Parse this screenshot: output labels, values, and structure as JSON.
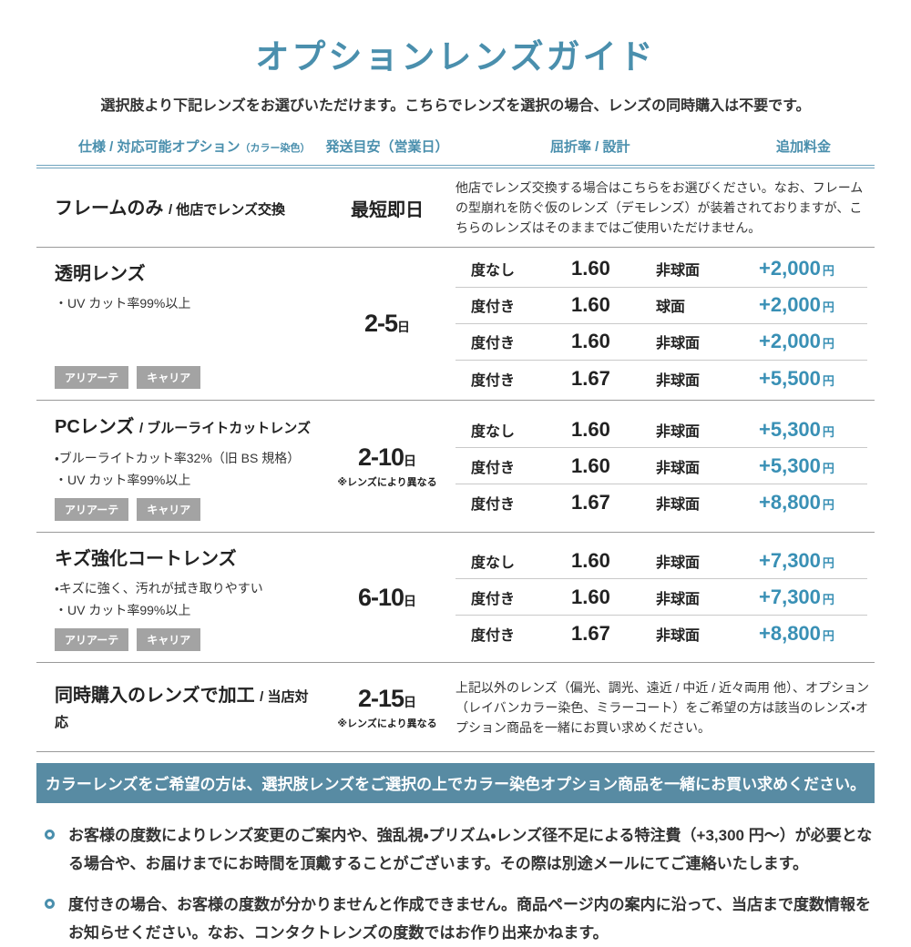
{
  "colors": {
    "accent": "#4a8fad",
    "price": "#3990b5",
    "banner_bg": "#588ba3",
    "badge_bg": "#a3a3a3"
  },
  "labels": {
    "yen": "円",
    "day": "日"
  },
  "page": {
    "title": "オプションレンズガイド",
    "subtitle": "選択肢より下記レンズをお選びいただけます。こちらでレンズを選択の場合、レンズの同時購入は不要です。"
  },
  "table": {
    "headers": {
      "spec": "仕様 / 対応可能オプション",
      "spec_note": "（カラー染色）",
      "shipping": "発送目安（営業日）",
      "index_design": "屈折率 / 設計",
      "price": "追加料金"
    },
    "rows": [
      {
        "name": "フレームのみ",
        "suffix": "/ 他店でレンズ交換",
        "ship_plain": "最短即日",
        "description": "他店でレンズ交換する場合はこちらをお選びください。なお、フレームの型崩れを防ぐ仮のレンズ（デモレンズ）が装着されておりますが、こちらのレンズはそのままではご使用いただけません。"
      },
      {
        "name": "透明レンズ",
        "features": [
          "・UV カット率99%以上"
        ],
        "tags": [
          "アリアーテ",
          "キャリア"
        ],
        "ship_value": "2-5",
        "options": [
          {
            "power": "度なし",
            "index": "1.60",
            "design": "非球面",
            "price": "+2,000"
          },
          {
            "power": "度付き",
            "index": "1.60",
            "design": "球面",
            "price": "+2,000"
          },
          {
            "power": "度付き",
            "index": "1.60",
            "design": "非球面",
            "price": "+2,000"
          },
          {
            "power": "度付き",
            "index": "1.67",
            "design": "非球面",
            "price": "+5,500"
          }
        ]
      },
      {
        "name": "PCレンズ",
        "suffix": "/ ブルーライトカットレンズ",
        "features": [
          "・ブルーライトカット率32%（旧 BS 規格）",
          "・UV カット率99%以上"
        ],
        "tags": [
          "アリアーテ",
          "キャリア"
        ],
        "ship_value": "2-10",
        "ship_note": "※レンズにより異なる",
        "options": [
          {
            "power": "度なし",
            "index": "1.60",
            "design": "非球面",
            "price": "+5,300"
          },
          {
            "power": "度付き",
            "index": "1.60",
            "design": "非球面",
            "price": "+5,300"
          },
          {
            "power": "度付き",
            "index": "1.67",
            "design": "非球面",
            "price": "+8,800"
          }
        ]
      },
      {
        "name": "キズ強化コートレンズ",
        "features": [
          "・キズに強く、汚れが拭き取りやすい",
          "・UV カット率99%以上"
        ],
        "tags": [
          "アリアーテ",
          "キャリア"
        ],
        "ship_value": "6-10",
        "options": [
          {
            "power": "度なし",
            "index": "1.60",
            "design": "非球面",
            "price": "+7,300"
          },
          {
            "power": "度付き",
            "index": "1.60",
            "design": "非球面",
            "price": "+7,300"
          },
          {
            "power": "度付き",
            "index": "1.67",
            "design": "非球面",
            "price": "+8,800"
          }
        ]
      },
      {
        "name": "同時購入のレンズで加工",
        "suffix": "/ 当店対応",
        "ship_value": "2-15",
        "ship_note": "※レンズにより異なる",
        "description": "上記以外のレンズ（偏光、調光、遠近 / 中近 / 近々両用 他）、オプション（レイバンカラー染色、ミラーコート）をご希望の方は該当のレンズ・オプション商品を一緒にお買い求めください。"
      }
    ]
  },
  "banner": "カラーレンズをご希望の方は、選択肢レンズをご選択の上でカラー染色オプション商品を一緒にお買い求めください。",
  "notes": [
    "お客様の度数によりレンズ変更のご案内や、強乱視・プリズム・レンズ径不足による特注費（+3,300 円〜）が必要となる場合や、お届けまでにお時間を頂戴することがございます。その際は別途メールにてご連絡いたします。",
    "度付きの場合、お客様の度数が分かりませんと作成できません。商品ページ内の案内に沿って、当店まで度数情報をお知らせください。なお、コンタクトレンズの度数ではお作り出来かねます。"
  ]
}
